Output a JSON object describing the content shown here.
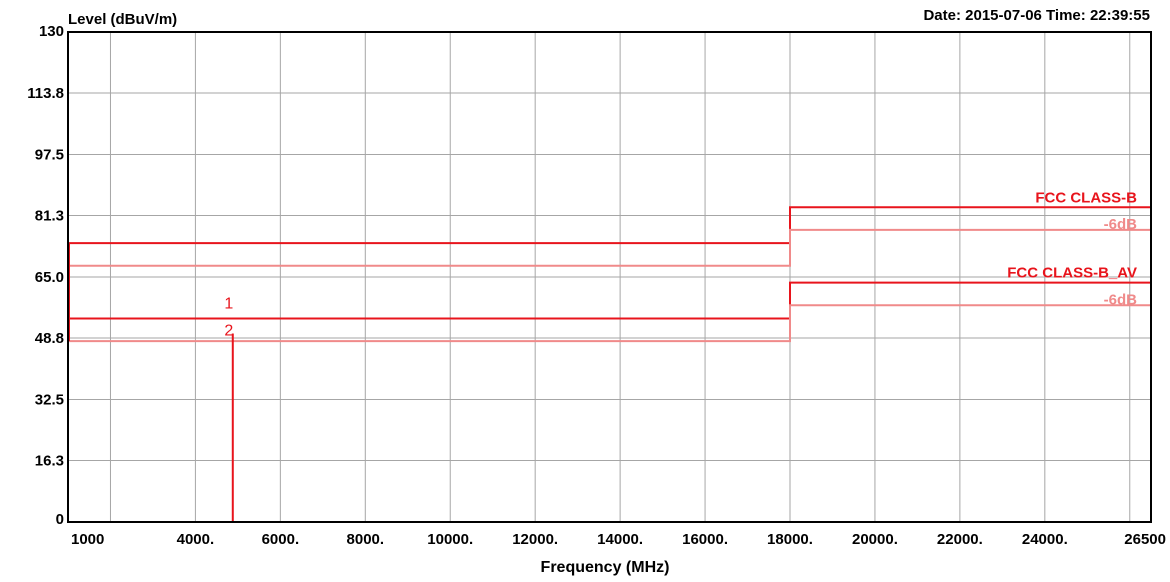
{
  "header": {
    "ylabel": "Level (dBuV/m)",
    "datetime": "Date: 2015-07-06  Time: 22:39:55"
  },
  "chart_data": {
    "type": "line",
    "xlabel": "Frequency (MHz)",
    "ylabel": "Level (dBuV/m)",
    "xlim": [
      1000,
      26500
    ],
    "ylim": [
      0,
      130
    ],
    "x_ticks": [
      1000,
      4000,
      6000,
      8000,
      10000,
      12000,
      14000,
      16000,
      18000,
      20000,
      22000,
      24000,
      26500
    ],
    "x_tick_labels": [
      "1000",
      "4000.",
      "6000.",
      "8000.",
      "10000.",
      "12000.",
      "14000.",
      "16000.",
      "18000.",
      "20000.",
      "22000.",
      "24000.",
      "26500"
    ],
    "y_ticks": [
      0,
      16.3,
      32.5,
      48.8,
      65.0,
      81.3,
      97.5,
      113.8,
      130
    ],
    "y_tick_labels": [
      "0",
      "16.3",
      "32.5",
      "48.8",
      "65.0",
      "81.3",
      "97.5",
      "113.8",
      "130"
    ],
    "grid": true,
    "series": [
      {
        "name": "FCC CLASS-B",
        "color": "#e8141c",
        "points": [
          [
            1000,
            74
          ],
          [
            18000,
            74
          ],
          [
            18000,
            83.5
          ],
          [
            26500,
            83.5
          ]
        ]
      },
      {
        "name": "-6dB",
        "color": "#f08a8a",
        "points": [
          [
            1000,
            68
          ],
          [
            18000,
            68
          ],
          [
            18000,
            77.5
          ],
          [
            26500,
            77.5
          ]
        ]
      },
      {
        "name": "FCC CLASS-B_AV",
        "color": "#e8141c",
        "points": [
          [
            1000,
            54
          ],
          [
            18000,
            54
          ],
          [
            18000,
            63.5
          ],
          [
            26500,
            63.5
          ]
        ]
      },
      {
        "name": "-6dB",
        "color": "#f08a8a",
        "points": [
          [
            1000,
            48
          ],
          [
            18000,
            48
          ],
          [
            18000,
            57.5
          ],
          [
            26500,
            57.5
          ]
        ]
      }
    ],
    "annotations": [
      {
        "text": "FCC CLASS-B",
        "x": 26500,
        "y": 83.5,
        "color": "#e8141c"
      },
      {
        "text": "-6dB",
        "x": 26500,
        "y": 77.5,
        "color": "#f08a8a"
      },
      {
        "text": "FCC CLASS-B_AV",
        "x": 26500,
        "y": 63.5,
        "color": "#e8141c"
      },
      {
        "text": "-6dB",
        "x": 26500,
        "y": 57.5,
        "color": "#f08a8a"
      }
    ],
    "markers": [
      {
        "label": "1",
        "x": 4880,
        "y": 55
      },
      {
        "label": "2",
        "x": 4880,
        "y": 50
      }
    ],
    "marker_color": "#e8141c"
  }
}
